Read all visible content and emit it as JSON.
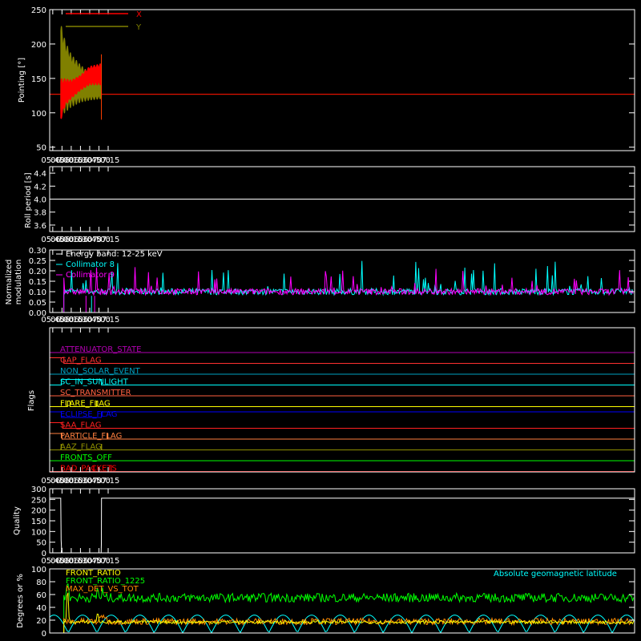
{
  "colors": {
    "background": "#000000",
    "axes": "#ffffff",
    "x_pointing": "#ff0000",
    "y_pointing": "#808000",
    "collimator_8": "#00ffff",
    "collimator_9": "#ff00ff",
    "front_ratio": "#ffff00",
    "front_ratio_1225": "#00ff00",
    "max_det_vs_tot": "#ff8c00",
    "geomagnetic": "#00ffff"
  },
  "chart_data": [
    {
      "id": "pointing",
      "type": "line",
      "ylabel": "Pointing [°]",
      "xlim": [
        340,
        1290
      ],
      "ylim": [
        45,
        250
      ],
      "yticks": [
        50,
        100,
        150,
        200,
        250
      ],
      "xtick_values": [
        345,
        360,
        375,
        390,
        405,
        420,
        435
      ],
      "xtick_labels": [
        "05:45",
        "06:00",
        "06:15",
        "06:30",
        "06:45",
        "07:00",
        "07:15"
      ],
      "legend": [
        "X",
        "Y"
      ],
      "legend_position": "top-left",
      "series": [
        {
          "name": "X",
          "baseline": 127,
          "active_range": [
            358,
            424
          ],
          "envelope_low": [
            [
              358,
              88
            ],
            [
              365,
              110
            ],
            [
              375,
              120
            ],
            [
              390,
              132
            ],
            [
              405,
              140
            ],
            [
              424,
              140
            ]
          ],
          "envelope_high": [
            [
              358,
              150
            ],
            [
              365,
              150
            ],
            [
              375,
              148
            ],
            [
              390,
              155
            ],
            [
              405,
              168
            ],
            [
              424,
              172
            ]
          ]
        },
        {
          "name": "Y",
          "baseline": 127,
          "active_range": [
            358,
            424
          ],
          "envelope_low": [
            [
              358,
              95
            ],
            [
              365,
              100
            ],
            [
              375,
              108
            ],
            [
              390,
              115
            ],
            [
              405,
              118
            ],
            [
              424,
              120
            ]
          ],
          "envelope_high": [
            [
              358,
              230
            ],
            [
              365,
              205
            ],
            [
              375,
              185
            ],
            [
              390,
              170
            ],
            [
              405,
              158
            ],
            [
              424,
              152
            ]
          ]
        }
      ]
    },
    {
      "id": "roll",
      "type": "line",
      "ylabel": "Roll period [s]",
      "ylim": [
        3.5,
        4.5
      ],
      "yticks": [
        "3.6",
        "3.8",
        "4.0",
        "4.2",
        "4.4"
      ],
      "xtick_labels": [
        "05:45",
        "06:00",
        "06:15",
        "06:30",
        "06:45",
        "07:00",
        "07:15"
      ],
      "series": [
        {
          "name": "",
          "values": [
            [
              340,
              4.0
            ],
            [
              1290,
              4.0
            ]
          ]
        }
      ]
    },
    {
      "id": "modulation",
      "type": "line",
      "ylabel": "Normalized modulation",
      "ylim": [
        0,
        0.3
      ],
      "yticks": [
        "0.00",
        "0.05",
        "0.10",
        "0.15",
        "0.20",
        "0.25",
        "0.30"
      ],
      "xtick_labels": [
        "05:45",
        "06:00",
        "06:15",
        "06:30",
        "06:45",
        "07:00",
        "07:15"
      ],
      "legend": [
        "Energy band: 12-25 keV",
        "Collimator 8",
        "Collimator 9"
      ],
      "legend_position": "top-left",
      "series": [
        {
          "name": "Collimator 8",
          "active_range": [
            363,
            1290
          ],
          "typical": 0.1,
          "noise_max": 0.25
        },
        {
          "name": "Collimator 9",
          "active_range": [
            363,
            1290
          ],
          "typical": 0.1,
          "noise_max": 0.22
        }
      ]
    },
    {
      "id": "flags",
      "type": "line",
      "ylabel": "Flags",
      "xtick_labels": [
        "05:45",
        "06:00",
        "06:15",
        "06:30",
        "06:45",
        "07:00",
        "07:15"
      ],
      "series": [
        {
          "name": "ATTENUATOR_STATE",
          "color": "#b000b0",
          "steps": [
            [
              340,
              0
            ]
          ]
        },
        {
          "name": "GAP_FLAG",
          "color": "#ff3030",
          "steps": [
            [
              340,
              1
            ],
            [
              363,
              0
            ]
          ]
        },
        {
          "name": "NON_SOLAR_EVENT",
          "color": "#00a0c0",
          "steps": [
            [
              340,
              0
            ]
          ]
        },
        {
          "name": "SC_IN_SUNLIGHT",
          "color": "#00ffff",
          "steps": [
            [
              340,
              0
            ],
            [
              359,
              1
            ],
            [
              424,
              0
            ]
          ]
        },
        {
          "name": "SC_TRANSMITTER",
          "color": "#ff6040",
          "steps": [
            [
              340,
              0
            ]
          ]
        },
        {
          "name": "FLARE_FLAG",
          "color": "#ffff00",
          "steps": [
            [
              340,
              0
            ],
            [
              369,
              1
            ],
            [
              373,
              0
            ],
            [
              416,
              1
            ],
            [
              418,
              0
            ]
          ]
        },
        {
          "name": "ECLIPSE_FLAG",
          "color": "#0000ff",
          "steps": [
            [
              340,
              1
            ],
            [
              359,
              0
            ],
            [
              424,
              1
            ]
          ]
        },
        {
          "name": "SAA_FLAG",
          "color": "#ff2020",
          "steps": [
            [
              340,
              1
            ],
            [
              361,
              0
            ]
          ]
        },
        {
          "name": "PARTICLE_FLAG",
          "color": "#ff8040",
          "steps": [
            [
              340,
              1
            ],
            [
              360,
              0
            ],
            [
              433.5,
              1
            ],
            [
              434,
              0
            ],
            [
              434.3,
              1
            ],
            [
              434.6,
              0
            ]
          ]
        },
        {
          "name": "AAZ_FLAG",
          "color": "#909000",
          "steps": [
            [
              340,
              0
            ],
            [
              358.5,
              1
            ],
            [
              359,
              0
            ],
            [
              424,
              1
            ],
            [
              424.4,
              0
            ]
          ]
        },
        {
          "name": "FRONTS_OFF",
          "color": "#00ff00",
          "steps": [
            [
              340,
              0
            ]
          ]
        },
        {
          "name": "BAD_PACKETS",
          "color": "#ff0000",
          "steps": [
            [
              340,
              0
            ],
            [
              411.5,
              1
            ],
            [
              411.8,
              0
            ],
            [
              439.5,
              1
            ],
            [
              439.8,
              0
            ]
          ]
        }
      ]
    },
    {
      "id": "quality",
      "type": "line",
      "ylabel": "Quality",
      "ylim": [
        0,
        300
      ],
      "yticks": [
        0,
        50,
        100,
        150,
        200,
        250,
        300
      ],
      "xtick_labels": [
        "05:45",
        "06:00",
        "06:15",
        "06:30",
        "06:45",
        "07:00",
        "07:15"
      ],
      "series": [
        {
          "name": "",
          "values": [
            [
              340,
              256
            ],
            [
              358,
              256
            ],
            [
              358.6,
              60
            ],
            [
              359.2,
              20
            ],
            [
              360,
              0
            ],
            [
              423.6,
              0
            ],
            [
              424,
              40
            ],
            [
              424.2,
              256
            ],
            [
              1290,
              256
            ]
          ]
        }
      ]
    },
    {
      "id": "ratios",
      "type": "line",
      "ylabel": "Degrees or %",
      "ylim": [
        0,
        100
      ],
      "yticks": [
        0,
        20,
        40,
        60,
        80,
        100
      ],
      "legend": [
        "FRONT_RATIO",
        "FRONT_RATIO_1225",
        "MAX_DET_VS_TOT",
        "Absolute geomagnetic latitude"
      ],
      "series": [
        {
          "name": "FRONT_RATIO",
          "typical": 20
        },
        {
          "name": "FRONT_RATIO_1225",
          "typical": 55
        },
        {
          "name": "MAX_DET_VS_TOT",
          "typical": 18
        },
        {
          "name": "Absolute geomagnetic latitude",
          "amplitude": 28
        }
      ]
    }
  ]
}
